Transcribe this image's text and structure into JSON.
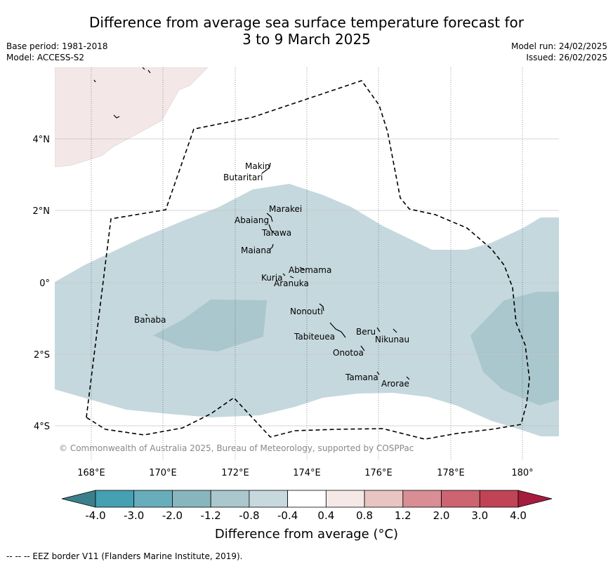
{
  "title_line1": "Difference from average sea surface temperature forecast for",
  "title_line2": "3 to 9 March 2025",
  "meta_left": {
    "base_period": "Base period: 1981-2018",
    "model": "Model: ACCESS-S2"
  },
  "meta_right": {
    "model_run": "Model run: 24/02/2025",
    "issued": "Issued: 26/02/2025"
  },
  "copyright": "© Commonwealth of Australia 2025, Bureau of Meteorology, supported by COSPPac",
  "y_ticks": [
    "4°N",
    "2°N",
    "0°",
    "2°S",
    "4°S"
  ],
  "x_ticks": [
    "168°E",
    "170°E",
    "172°E",
    "174°E",
    "176°E",
    "178°E",
    "180°"
  ],
  "islands": [
    "Makin",
    "Butaritari",
    "Marakei",
    "Abaiang",
    "Tarawa",
    "Maiana",
    "Abemama",
    "Kuria",
    "Aranuka",
    "Nonouti",
    "Banaba",
    "Tabiteuea",
    "Beru",
    "Nikunau",
    "Onotoa",
    "Tamana",
    "Arorae"
  ],
  "colorbar": {
    "labels": [
      "-4.0",
      "-3.0",
      "-2.0",
      "-1.2",
      "-0.8",
      "-0.4",
      "0.4",
      "0.8",
      "1.2",
      "2.0",
      "3.0",
      "4.0"
    ],
    "colors": [
      "#3a7f8c",
      "#45a0b1",
      "#68adbb",
      "#88b6be",
      "#a9c7cd",
      "#c8d9de",
      "#ffffff",
      "#f5e9e8",
      "#e9c5c2",
      "#d98d94",
      "#cc6571",
      "#c04455",
      "#a61c3c"
    ],
    "title": "Difference from average (",
    "title_unit": "°C)"
  },
  "footnote": "--  --  -- EEZ border V11 (Flanders Marine Institute, 2019)."
}
